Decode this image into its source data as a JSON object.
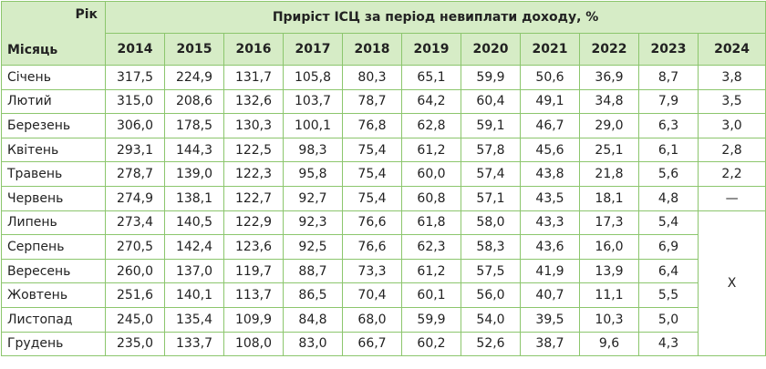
{
  "header": {
    "corner_year": "Рік",
    "corner_month": "Місяць",
    "title": "Приріст ІСЦ за період невиплати доходу, %",
    "years": [
      "2014",
      "2015",
      "2016",
      "2017",
      "2018",
      "2019",
      "2020",
      "2021",
      "2022",
      "2023",
      "2024"
    ]
  },
  "rows": [
    {
      "month": "Січень",
      "values": [
        "317,5",
        "224,9",
        "131,7",
        "105,8",
        "80,3",
        "65,1",
        "59,9",
        "50,6",
        "36,9",
        "8,7",
        "3,8"
      ]
    },
    {
      "month": "Лютий",
      "values": [
        "315,0",
        "208,6",
        "132,6",
        "103,7",
        "78,7",
        "64,2",
        "60,4",
        "49,1",
        "34,8",
        "7,9",
        "3,5"
      ]
    },
    {
      "month": "Березень",
      "values": [
        "306,0",
        "178,5",
        "130,3",
        "100,1",
        "76,8",
        "62,8",
        "59,1",
        "46,7",
        "29,0",
        "6,3",
        "3,0"
      ]
    },
    {
      "month": "Квітень",
      "values": [
        "293,1",
        "144,3",
        "122,5",
        "98,3",
        "75,4",
        "61,2",
        "57,8",
        "45,6",
        "25,1",
        "6,1",
        "2,8"
      ]
    },
    {
      "month": "Травень",
      "values": [
        "278,7",
        "139,0",
        "122,3",
        "95,8",
        "75,4",
        "60,0",
        "57,4",
        "43,8",
        "21,8",
        "5,6",
        "2,2"
      ]
    },
    {
      "month": "Червень",
      "values": [
        "274,9",
        "138,1",
        "122,7",
        "92,7",
        "75,4",
        "60,8",
        "57,1",
        "43,5",
        "18,1",
        "4,8",
        "—"
      ]
    },
    {
      "month": "Липень",
      "values": [
        "273,4",
        "140,5",
        "122,9",
        "92,3",
        "76,6",
        "61,8",
        "58,0",
        "43,3",
        "17,3",
        "5,4"
      ]
    },
    {
      "month": "Серпень",
      "values": [
        "270,5",
        "142,4",
        "123,6",
        "92,5",
        "76,6",
        "62,3",
        "58,3",
        "43,6",
        "16,0",
        "6,9"
      ]
    },
    {
      "month": "Вересень",
      "values": [
        "260,0",
        "137,0",
        "119,7",
        "88,7",
        "73,3",
        "61,2",
        "57,5",
        "41,9",
        "13,9",
        "6,4"
      ]
    },
    {
      "month": "Жовтень",
      "values": [
        "251,6",
        "140,1",
        "113,7",
        "86,5",
        "70,4",
        "60,1",
        "56,0",
        "40,7",
        "11,1",
        "5,5"
      ]
    },
    {
      "month": "Листопад",
      "values": [
        "245,0",
        "135,4",
        "109,9",
        "84,8",
        "68,0",
        "59,9",
        "54,0",
        "39,5",
        "10,3",
        "5,0"
      ]
    },
    {
      "month": "Грудень",
      "values": [
        "235,0",
        "133,7",
        "108,0",
        "83,0",
        "66,7",
        "60,2",
        "52,6",
        "38,7",
        "9,6",
        "4,3"
      ]
    }
  ],
  "merged_2024": "X"
}
